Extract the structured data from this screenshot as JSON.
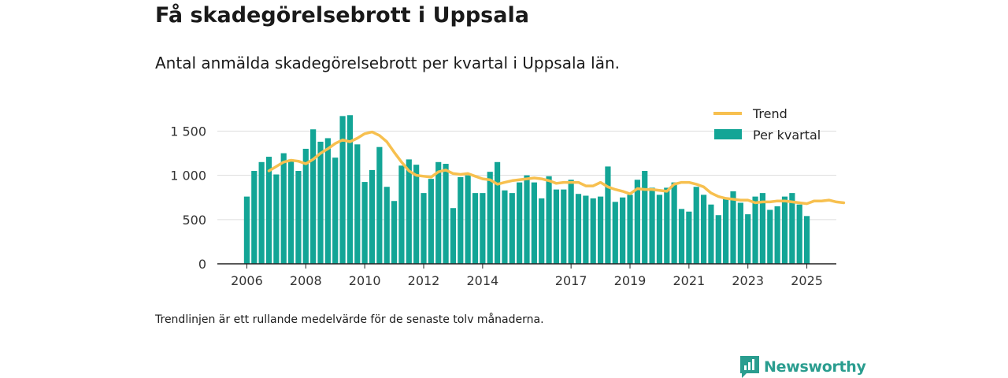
{
  "title": "Få skadegörelsebrott i Uppsala",
  "subtitle": "Antal anmälda skadegörelsebrott per kvartal i Uppsala län.",
  "note": "Trendlinjen är ett rullande medelvärde för de senaste tolv månaderna.",
  "brand": "Newsworthy",
  "colors": {
    "bar": "#13a596",
    "trend": "#f7c04f",
    "axis": "#222222",
    "grid": "#dddddd",
    "brand": "#2a9d8f"
  },
  "chart_data": {
    "type": "bar",
    "x_tick_labels": [
      "2006",
      "2008",
      "2010",
      "2012",
      "2014",
      "2017",
      "2019",
      "2021",
      "2023",
      "2025"
    ],
    "x_tick_positions": [
      2006,
      2008,
      2010,
      2012,
      2014,
      2017,
      2019,
      2021,
      2023,
      2025
    ],
    "y_tick_labels": [
      "0",
      "500",
      "1 000",
      "1 500"
    ],
    "ylim": [
      0,
      1700
    ],
    "xlim": [
      2005.0,
      2026.0
    ],
    "grid": true,
    "legend_position": "top-right",
    "series": [
      {
        "name": "Per kvartal",
        "type": "bar",
        "start_year": 2006,
        "values": [
          760,
          1050,
          1150,
          1210,
          1010,
          1250,
          1180,
          1050,
          1300,
          1520,
          1380,
          1420,
          1200,
          1670,
          1680,
          1350,
          925,
          1060,
          1320,
          870,
          710,
          1110,
          1180,
          1120,
          800,
          960,
          1150,
          1130,
          630,
          980,
          1000,
          800,
          800,
          1040,
          1150,
          830,
          800,
          920,
          1000,
          920,
          740,
          990,
          840,
          840,
          950,
          790,
          770,
          740,
          760,
          1100,
          700,
          750,
          780,
          950,
          1050,
          860,
          780,
          860,
          920,
          620,
          590,
          870,
          780,
          670,
          550,
          740,
          820,
          690,
          560,
          760,
          800,
          610,
          650,
          760,
          800,
          670,
          540
        ]
      },
      {
        "name": "Trend",
        "type": "line",
        "start_year": 2006.75,
        "values": [
          1050,
          1100,
          1150,
          1170,
          1160,
          1130,
          1180,
          1250,
          1300,
          1360,
          1400,
          1380,
          1420,
          1470,
          1490,
          1450,
          1380,
          1260,
          1150,
          1050,
          1000,
          990,
          980,
          1040,
          1060,
          1020,
          1010,
          1020,
          990,
          960,
          950,
          900,
          920,
          940,
          950,
          960,
          970,
          960,
          940,
          910,
          920,
          920,
          920,
          880,
          880,
          920,
          870,
          840,
          820,
          790,
          850,
          840,
          840,
          830,
          820,
          900,
          920,
          920,
          900,
          870,
          800,
          760,
          740,
          730,
          720,
          720,
          690,
          700,
          700,
          710,
          710,
          700,
          690,
          680,
          710,
          710,
          720,
          700,
          690
        ]
      }
    ]
  }
}
